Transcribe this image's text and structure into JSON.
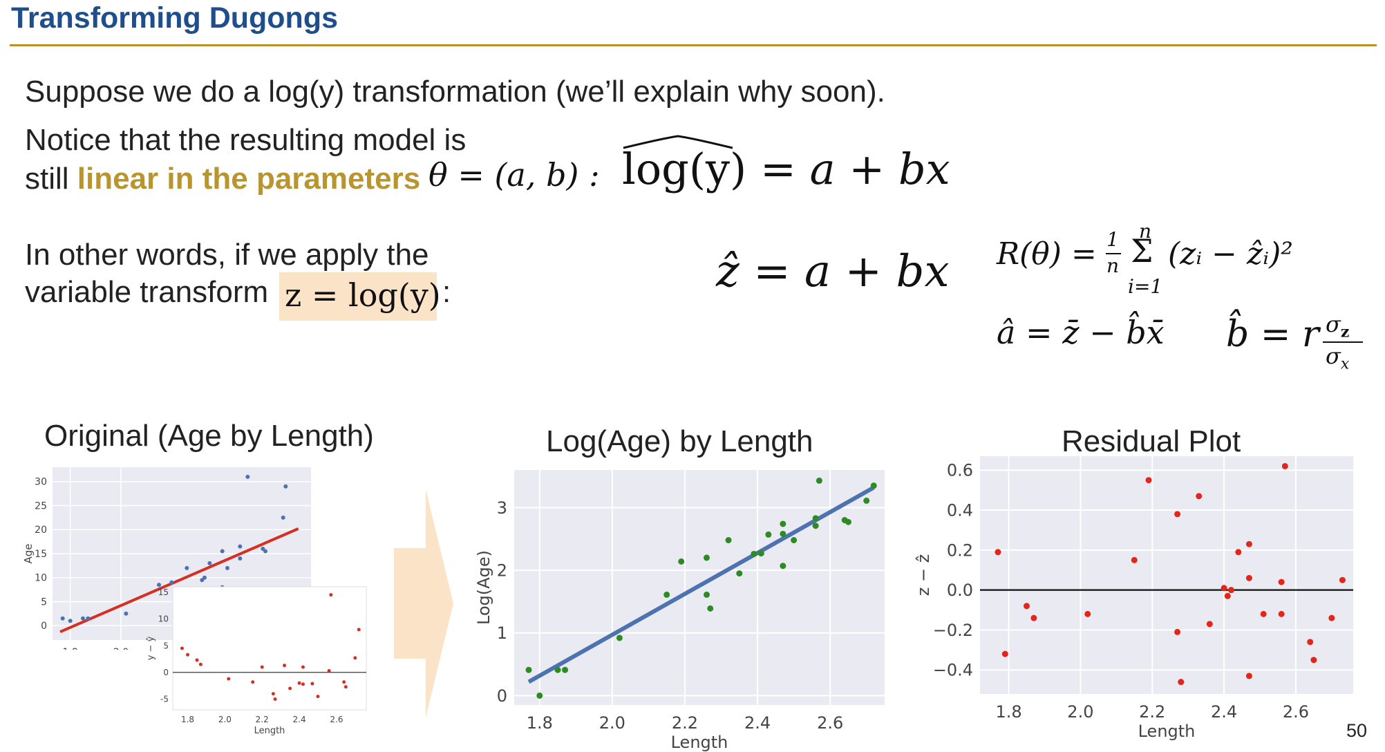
{
  "slide": {
    "title": "Transforming Dugongs",
    "line1": "Suppose we do a log(y) transformation (we’ll explain why soon).",
    "line2": "Notice that the resulting model is",
    "line3_pre": "still ",
    "line3_bold": "linear in the parameters",
    "theta_expr": "θ = (a, b) :",
    "model_expr_lhs": "log(y)",
    "model_expr_rhs": "= a + bx",
    "line4": "In other words, if we apply the",
    "line5": "variable transform",
    "transform_expr": "z = log(y)",
    "transform_colon": ":",
    "zhat_expr": "ẑ = a + bx",
    "risk_expr": "R(θ) = ",
    "risk_sum": "(zᵢ − ẑᵢ)²",
    "risk_frac_num": "1",
    "risk_frac_den": "n",
    "risk_sum_top": "n",
    "risk_sum_bottom": "i=1",
    "ahat_expr": "â = z̄ − b̂x̄",
    "bhat_expr": "b̂ = r",
    "bhat_num": "σ",
    "bhat_num_sub": "z",
    "bhat_den": "σ",
    "bhat_den_sub": "x",
    "page_number": "50",
    "colors": {
      "title": "#1f4e8c",
      "accent": "#b8912a",
      "highlight": "#fbe3c8",
      "arrow": "#fbe3c8"
    }
  },
  "chart_data": [
    {
      "type": "scatter",
      "title": "Original (Age by Length)",
      "xlabel": "",
      "ylabel": "Age",
      "xticks": [
        "1.8",
        "2.0"
      ],
      "yticks": [
        "0",
        "5",
        "10",
        "15",
        "20",
        "25",
        "30"
      ],
      "ylim": [
        -3,
        33
      ],
      "points": [
        [
          1.77,
          1.5
        ],
        [
          1.8,
          1
        ],
        [
          1.85,
          1.5
        ],
        [
          1.87,
          1.5
        ],
        [
          2.02,
          2.5
        ],
        [
          2.15,
          8.5
        ],
        [
          2.2,
          9
        ],
        [
          2.26,
          12
        ],
        [
          2.27,
          7
        ],
        [
          2.32,
          9.5
        ],
        [
          2.33,
          10
        ],
        [
          2.35,
          13
        ],
        [
          2.4,
          15.5
        ],
        [
          2.4,
          8
        ],
        [
          2.42,
          12
        ],
        [
          2.47,
          16.5
        ],
        [
          2.47,
          14
        ],
        [
          2.5,
          31
        ],
        [
          2.56,
          16
        ],
        [
          2.57,
          15.5
        ],
        [
          2.64,
          22.5
        ],
        [
          2.65,
          29
        ]
      ],
      "fit_line": [
        [
          1.76,
          -1.3
        ],
        [
          2.7,
          20.2
        ]
      ],
      "colors": {
        "points": "#4c72b0",
        "fit": "#d62f22",
        "bg": "#eaeaf2"
      }
    },
    {
      "type": "scatter",
      "title": "",
      "xlabel": "Length",
      "ylabel": "y − ŷ",
      "xticks": [
        "1.8",
        "2.0",
        "2.2",
        "2.4",
        "2.6"
      ],
      "yticks": [
        "-5",
        "0",
        "5",
        "10",
        "15"
      ],
      "ylim": [
        -7,
        16
      ],
      "points": [
        [
          1.77,
          4.5
        ],
        [
          1.8,
          3.3
        ],
        [
          1.85,
          2.3
        ],
        [
          1.87,
          1.5
        ],
        [
          2.02,
          -1.2
        ],
        [
          2.15,
          -1.8
        ],
        [
          2.2,
          1
        ],
        [
          2.26,
          -4
        ],
        [
          2.27,
          -5
        ],
        [
          2.32,
          1.3
        ],
        [
          2.35,
          -3
        ],
        [
          2.4,
          -2
        ],
        [
          2.42,
          -2.2
        ],
        [
          2.42,
          1
        ],
        [
          2.47,
          -2.1
        ],
        [
          2.5,
          -4.5
        ],
        [
          2.56,
          0.3
        ],
        [
          2.57,
          14.5
        ],
        [
          2.64,
          -1.8
        ],
        [
          2.65,
          -2.7
        ],
        [
          2.7,
          2.7
        ],
        [
          2.72,
          8
        ]
      ],
      "colors": {
        "points": "#d62f22",
        "bg": "#ffffff"
      }
    },
    {
      "type": "scatter",
      "title": "Log(Age) by Length",
      "xlabel": "Length",
      "ylabel": "Log(Age)",
      "xticks": [
        "1.8",
        "2.0",
        "2.2",
        "2.4",
        "2.6"
      ],
      "yticks": [
        "0",
        "1",
        "2",
        "3"
      ],
      "xlim": [
        1.73,
        2.75
      ],
      "ylim": [
        -0.15,
        3.6
      ],
      "points": [
        [
          1.77,
          0.41
        ],
        [
          1.8,
          0.0
        ],
        [
          1.85,
          0.41
        ],
        [
          1.87,
          0.41
        ],
        [
          2.02,
          0.92
        ],
        [
          2.15,
          1.61
        ],
        [
          2.19,
          2.14
        ],
        [
          2.26,
          2.2
        ],
        [
          2.26,
          1.61
        ],
        [
          2.27,
          1.39
        ],
        [
          2.32,
          2.48
        ],
        [
          2.35,
          1.95
        ],
        [
          2.39,
          2.26
        ],
        [
          2.41,
          2.27
        ],
        [
          2.43,
          2.57
        ],
        [
          2.47,
          2.07
        ],
        [
          2.47,
          2.58
        ],
        [
          2.47,
          2.74
        ],
        [
          2.5,
          2.48
        ],
        [
          2.56,
          2.71
        ],
        [
          2.56,
          2.83
        ],
        [
          2.57,
          3.43
        ],
        [
          2.64,
          2.8
        ],
        [
          2.65,
          2.77
        ],
        [
          2.7,
          3.11
        ],
        [
          2.72,
          3.35
        ]
      ],
      "fit_line": [
        [
          1.77,
          0.22
        ],
        [
          2.72,
          3.32
        ]
      ],
      "colors": {
        "points": "#2e8b22",
        "fit": "#4c72b0",
        "bg": "#eaeaf2"
      }
    },
    {
      "type": "scatter",
      "title": "Residual Plot",
      "xlabel": "Length",
      "ylabel": "z − ẑ",
      "xticks": [
        "1.8",
        "2.0",
        "2.2",
        "2.4",
        "2.6"
      ],
      "yticks": [
        "−0.4",
        "−0.2",
        "0.0",
        "0.2",
        "0.4",
        "0.6"
      ],
      "xlim": [
        1.72,
        2.76
      ],
      "ylim": [
        -0.52,
        0.67
      ],
      "points": [
        [
          1.77,
          0.19
        ],
        [
          1.79,
          -0.32
        ],
        [
          1.85,
          -0.08
        ],
        [
          1.87,
          -0.14
        ],
        [
          2.02,
          -0.12
        ],
        [
          2.15,
          0.15
        ],
        [
          2.19,
          0.55
        ],
        [
          2.27,
          0.38
        ],
        [
          2.27,
          -0.21
        ],
        [
          2.28,
          -0.46
        ],
        [
          2.33,
          0.47
        ],
        [
          2.36,
          -0.17
        ],
        [
          2.4,
          0.01
        ],
        [
          2.41,
          -0.03
        ],
        [
          2.42,
          0.0
        ],
        [
          2.44,
          0.19
        ],
        [
          2.47,
          0.23
        ],
        [
          2.47,
          0.06
        ],
        [
          2.47,
          -0.43
        ],
        [
          2.51,
          -0.12
        ],
        [
          2.56,
          0.04
        ],
        [
          2.56,
          -0.12
        ],
        [
          2.57,
          0.62
        ],
        [
          2.64,
          -0.26
        ],
        [
          2.65,
          -0.35
        ],
        [
          2.7,
          -0.14
        ],
        [
          2.73,
          0.05
        ]
      ],
      "colors": {
        "points": "#e3261a",
        "zero_line": "#222222",
        "bg": "#eaeaf2"
      }
    }
  ]
}
